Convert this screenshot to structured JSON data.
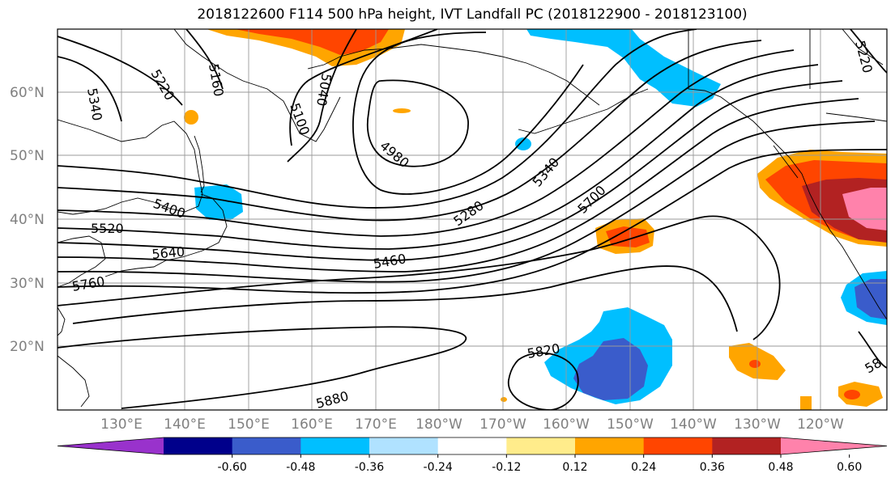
{
  "title": "2018122600 F114 500 hPa height, IVT Landfall PC (2018122900 - 2018123100)",
  "map": {
    "lat_labels": [
      "60°N",
      "50°N",
      "40°N",
      "30°N",
      "20°N"
    ],
    "lon_labels": [
      "130°E",
      "140°E",
      "150°E",
      "160°E",
      "170°E",
      "180°W",
      "170°W",
      "160°W",
      "150°W",
      "140°W",
      "130°W",
      "120°W"
    ],
    "contour_labels": [
      "5340",
      "5220",
      "5160",
      "5040",
      "5100",
      "4980",
      "5340",
      "5400",
      "5280",
      "5700",
      "5520",
      "5640",
      "5460",
      "5760",
      "5820",
      "5880",
      "5220",
      "58"
    ],
    "colors": {
      "neg_060": "#9932cc",
      "neg_048": "#00008b",
      "neg_036": "#3a5ccb",
      "neg_024": "#00bfff",
      "neg_012": "#b0e2ff",
      "zero": "#ffffff",
      "pos_012": "#ffec8b",
      "pos_024": "#ffa500",
      "pos_036": "#ff4500",
      "pos_048": "#b22222",
      "pos_060": "#ff82ab"
    }
  },
  "colorbar": {
    "ticks": [
      "-0.60",
      "-0.48",
      "-0.36",
      "-0.24",
      "-0.12",
      "0.12",
      "0.24",
      "0.36",
      "0.48",
      "0.60"
    ],
    "colors": [
      "#9932cc",
      "#00008b",
      "#3a5ccb",
      "#00bfff",
      "#b0e2ff",
      "#ffffff",
      "#ffec8b",
      "#ffa500",
      "#ff4500",
      "#b22222",
      "#ff82ab"
    ]
  }
}
